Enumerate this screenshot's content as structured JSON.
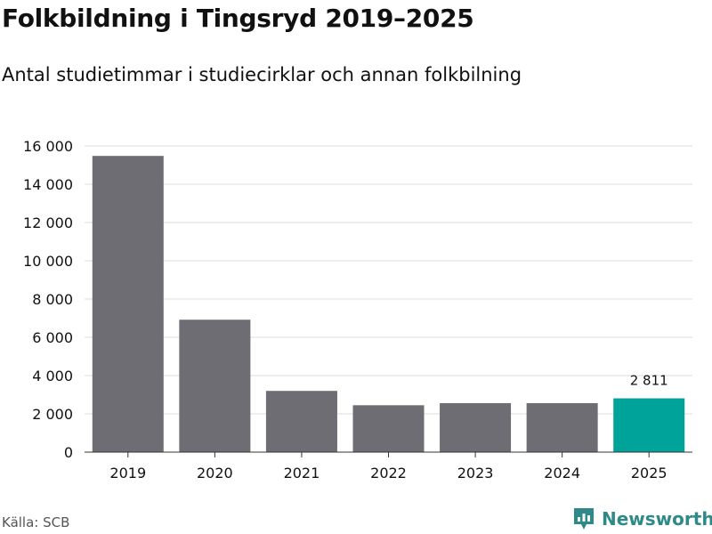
{
  "chart_data": {
    "type": "bar",
    "title": "Folkbildning i Tingsryd 2019–2025",
    "subtitle": "Antal studietimmar i studiecirklar och annan folkbilning",
    "categories": [
      "2019",
      "2020",
      "2021",
      "2022",
      "2023",
      "2024",
      "2025"
    ],
    "values": [
      15480,
      6920,
      3200,
      2450,
      2560,
      2560,
      2811
    ],
    "ylim": [
      0,
      16000
    ],
    "yticks": [
      0,
      2000,
      4000,
      6000,
      8000,
      10000,
      12000,
      14000,
      16000
    ],
    "ytick_labels": [
      "0",
      "2 000",
      "4 000",
      "6 000",
      "8 000",
      "10 000",
      "12 000",
      "14 000",
      "16 000"
    ],
    "grid": true,
    "highlight_index": 6,
    "highlight_label": "2 811",
    "colors": {
      "bar": "#6e6d74",
      "highlight": "#00a39a",
      "grid": "#dcdcdc",
      "axis": "#333333"
    }
  },
  "footer": {
    "source": "Källa: SCB",
    "brand": "Newsworthy",
    "brand_icon": "newsworthy-logo-icon",
    "brand_color": "#2e8a89"
  }
}
